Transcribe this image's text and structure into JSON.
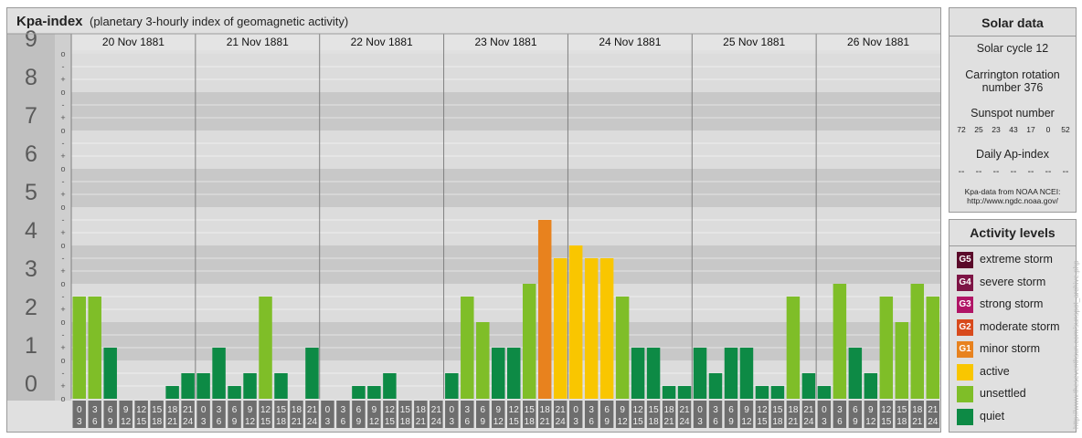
{
  "header": {
    "title": "Kpa-index",
    "subtitle": "(planetary 3-hourly index of geomagnetic activity)"
  },
  "chart_data": {
    "type": "bar",
    "yaxis": {
      "range": [
        0,
        9
      ],
      "major_ticks": [
        "0",
        "1",
        "2",
        "3",
        "4",
        "5",
        "6",
        "7",
        "8",
        "9"
      ],
      "minor_marks": [
        "o",
        "+",
        "-"
      ]
    },
    "days": [
      {
        "label": "20 Nov 1881",
        "values": [
          2.667,
          2.667,
          1.333,
          0,
          0,
          0,
          0.333,
          0.667
        ]
      },
      {
        "label": "21 Nov 1881",
        "values": [
          0.667,
          1.333,
          0.333,
          0.667,
          2.667,
          0.667,
          0,
          1.333
        ]
      },
      {
        "label": "22 Nov 1881",
        "values": [
          0,
          0,
          0.333,
          0.333,
          0.667,
          0,
          0,
          0
        ]
      },
      {
        "label": "23 Nov 1881",
        "values": [
          0.667,
          2.667,
          2,
          1.333,
          1.333,
          3,
          4.667,
          3.667
        ]
      },
      {
        "label": "24 Nov 1881",
        "values": [
          4,
          3.667,
          3.667,
          2.667,
          1.333,
          1.333,
          0.333,
          0.333
        ]
      },
      {
        "label": "25 Nov 1881",
        "values": [
          1.333,
          0.667,
          1.333,
          1.333,
          0.333,
          0.333,
          2.667,
          0.667
        ]
      },
      {
        "label": "26 Nov 1881",
        "values": [
          0.333,
          3,
          1.333,
          0.667,
          2.667,
          2,
          3,
          2.667
        ]
      }
    ],
    "interval_labels": [
      [
        "0",
        "3"
      ],
      [
        "3",
        "6"
      ],
      [
        "6",
        "9"
      ],
      [
        "9",
        "12"
      ],
      [
        "12",
        "15"
      ],
      [
        "15",
        "18"
      ],
      [
        "18",
        "21"
      ],
      [
        "21",
        "24"
      ]
    ]
  },
  "solar": {
    "title": "Solar data",
    "cycle": "Solar cycle 12",
    "rotation_1": "Carrington rotation",
    "rotation_2": "number 376",
    "sunspot_label": "Sunspot number",
    "sunspot_values": [
      "72",
      "25",
      "23",
      "43",
      "17",
      "0",
      "52"
    ],
    "ap_label": "Daily Ap-index",
    "ap_values": [
      "--",
      "--",
      "--",
      "--",
      "--",
      "--",
      "--"
    ],
    "credit_1": "Kpa-data from NOAA NCEI:",
    "credit_2": "http://www.ngdc.noaa.gov/"
  },
  "levels": {
    "title": "Activity levels",
    "items": [
      {
        "code": "G5",
        "label": "extreme storm",
        "color": "#5a0a2a"
      },
      {
        "code": "G4",
        "label": "severe storm",
        "color": "#7d1445"
      },
      {
        "code": "G3",
        "label": "strong storm",
        "color": "#b01465"
      },
      {
        "code": "G2",
        "label": "moderate storm",
        "color": "#d84a1c"
      },
      {
        "code": "G1",
        "label": "minor storm",
        "color": "#e8821e"
      },
      {
        "code": "",
        "label": "active",
        "color": "#f9c600"
      },
      {
        "code": "",
        "label": "unsettled",
        "color": "#7fbe28"
      },
      {
        "code": "",
        "label": "quiet",
        "color": "#0d8a45"
      }
    ]
  },
  "side_credit": "http://www.theseventhsun.com/sunspot_archive.php"
}
